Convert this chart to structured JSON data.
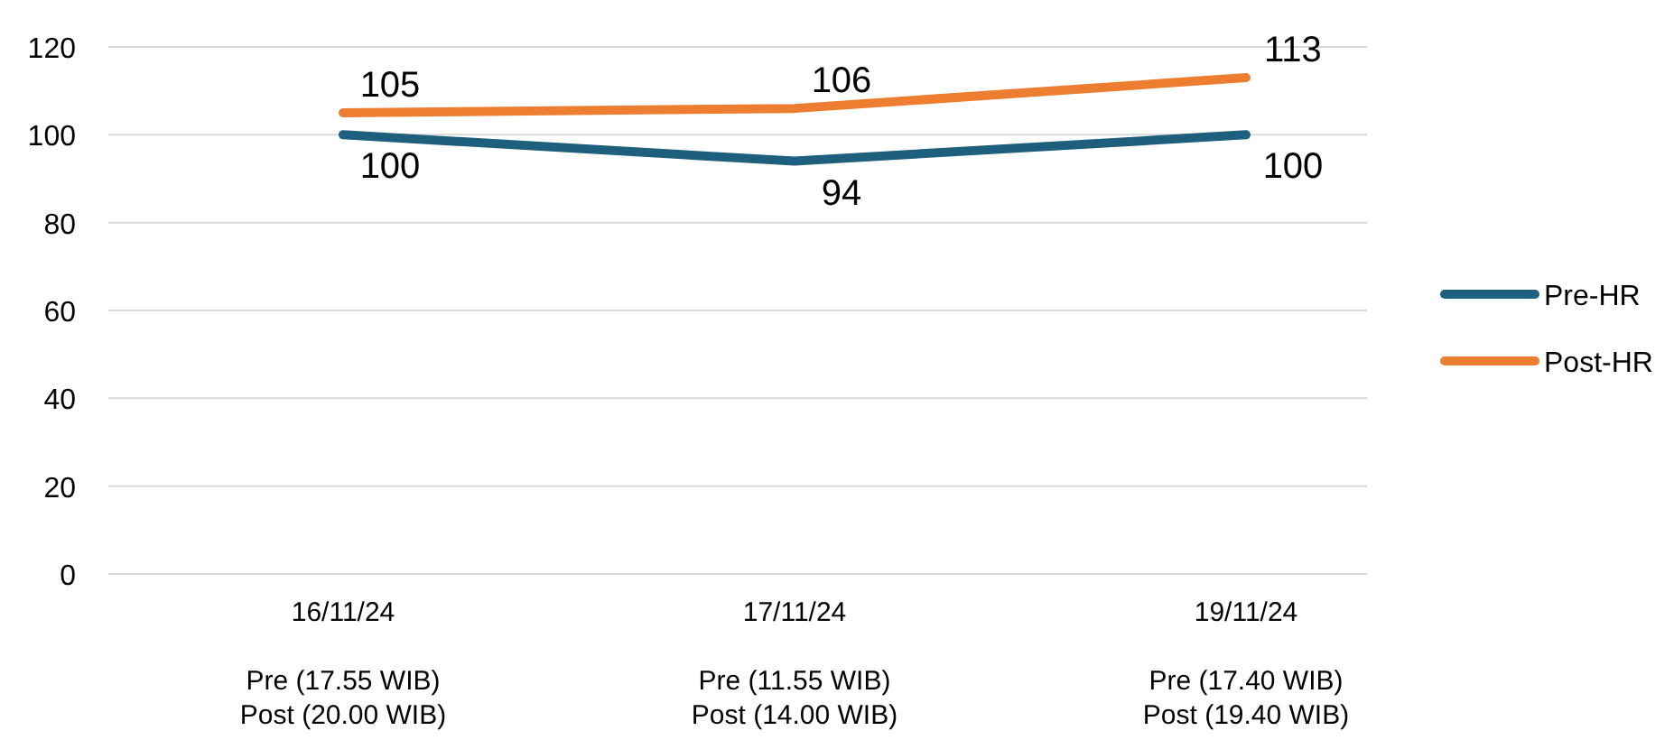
{
  "chart_data": {
    "type": "line",
    "categories": [
      "16/11/24\n\nPre (17.55 WIB)\nPost (20.00 WIB)",
      "17/11/24\n\nPre (11.55 WIB)\nPost (14.00 WIB)",
      "19/11/24\n\nPre (17.40 WIB)\nPost (19.40 WIB)"
    ],
    "series": [
      {
        "name": "Pre-HR",
        "color": "#1d5f7d",
        "values": [
          100,
          94,
          100
        ]
      },
      {
        "name": "Post-HR",
        "color": "#ed7d31",
        "values": [
          105,
          106,
          113
        ]
      }
    ],
    "ylim": [
      0,
      120
    ],
    "yticks": [
      0,
      20,
      40,
      60,
      80,
      100,
      120
    ],
    "grid": "y",
    "legend": "right",
    "data_labels": true,
    "marker": "none",
    "line_style": "solid"
  }
}
